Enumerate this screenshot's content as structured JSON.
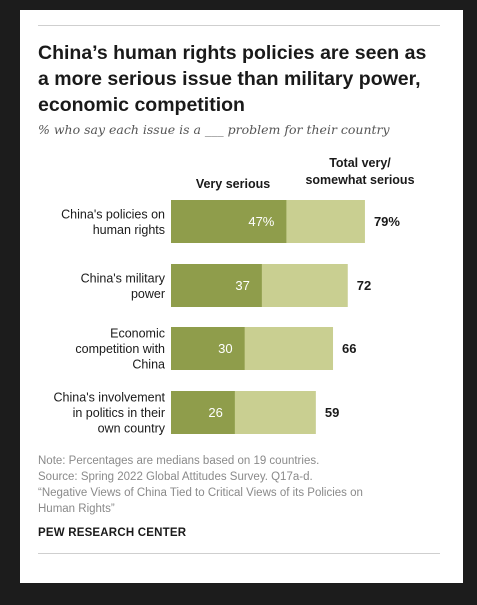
{
  "title": "China’s human rights policies are seen as a more serious issue than military power, economic competition",
  "subtitle": "% who say each issue is a ___ problem for their country",
  "headers": {
    "very_serious": "Very serious",
    "total": "Total very/ somewhat serious"
  },
  "colors": {
    "very_serious": "#8f9d4b",
    "somewhat_serious": "#c9cf91"
  },
  "chart_data": {
    "type": "bar",
    "categories": [
      "China's policies on human rights",
      "China's military power",
      "Economic competition with China",
      "China's involvement in politics in their own country"
    ],
    "series": [
      {
        "name": "Very serious",
        "values": [
          47,
          37,
          30,
          26
        ],
        "labels": [
          "47%",
          "37",
          "30",
          "26"
        ]
      },
      {
        "name": "Total very/ somewhat serious",
        "values": [
          79,
          72,
          66,
          59
        ],
        "labels": [
          "79%",
          "72",
          "66",
          "59"
        ]
      }
    ],
    "xlim": [
      0,
      100
    ]
  },
  "notes": [
    "Note: Percentages are medians based on 19 countries.",
    "Source: Spring 2022 Global Attitudes Survey. Q17a-d.",
    "“Negative Views of China Tied to Critical Views of its Policies on",
    "Human Rights”"
  ],
  "source_label": "PEW RESEARCH CENTER"
}
